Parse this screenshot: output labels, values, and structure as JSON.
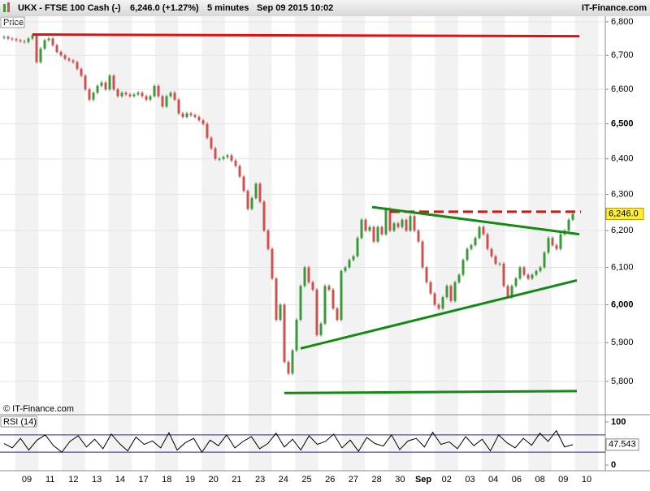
{
  "header": {
    "symbol": "UKX - FTSE 100 Cash (-)",
    "quote": "6,246.0 (+1.27%)",
    "interval": "5 minutes",
    "datetime": "Sep 09 2015 10:02",
    "brand": "IT-Finance.com"
  },
  "chart_data": [
    {
      "type": "candlestick",
      "panel_label": "Price",
      "copyright": "© IT-Finance.com",
      "log_scale": true,
      "grid": true,
      "up_color": "#3a9a3a",
      "down_color": "#d05050",
      "values": [
        6755,
        6750,
        6748,
        6745,
        6742,
        6740,
        6750,
        6760,
        6680,
        6720,
        6745,
        6750,
        6730,
        6710,
        6700,
        6690,
        6685,
        6680,
        6660,
        6640,
        6600,
        6570,
        6590,
        6610,
        6620,
        6600,
        6640,
        6600,
        6580,
        6590,
        6585,
        6580,
        6585,
        6590,
        6580,
        6570,
        6580,
        6610,
        6580,
        6550,
        6580,
        6590,
        6570,
        6530,
        6520,
        6530,
        6525,
        6520,
        6510,
        6500,
        6460,
        6430,
        6400,
        6400,
        6405,
        6410,
        6395,
        6380,
        6350,
        6310,
        6260,
        6290,
        6330,
        6280,
        6200,
        6150,
        6070,
        5960,
        6000,
        5850,
        5820,
        5880,
        5960,
        6050,
        6100,
        6060,
        6040,
        5920,
        5950,
        6050,
        6040,
        5990,
        5960,
        6090,
        6100,
        6120,
        6130,
        6180,
        6230,
        6200,
        6210,
        6170,
        6210,
        6190,
        6260,
        6200,
        6220,
        6210,
        6230,
        6200,
        6240,
        6200,
        6170,
        6100,
        6060,
        6030,
        6000,
        5990,
        6020,
        6050,
        6010,
        6060,
        6080,
        6120,
        6150,
        6160,
        6180,
        6210,
        6190,
        6150,
        6130,
        6110,
        6110,
        6050,
        6020,
        6050,
        6070,
        6100,
        6080,
        6070,
        6080,
        6090,
        6100,
        6140,
        6180,
        6160,
        6150,
        6190,
        6200,
        6230,
        6246
      ],
      "last_price": {
        "value": 6246,
        "label": "6,246.0"
      },
      "ylim": [
        5717,
        6817
      ],
      "yticks": [
        {
          "value": 5800,
          "label": "5,800"
        },
        {
          "value": 5900,
          "label": "5,900"
        },
        {
          "value": 6000,
          "label": "6,000"
        },
        {
          "value": 6100,
          "label": "6,100"
        },
        {
          "value": 6200,
          "label": "6,200"
        },
        {
          "value": 6300,
          "label": "6,300"
        },
        {
          "value": 6400,
          "label": "6,400"
        },
        {
          "value": 6500,
          "label": "6,500"
        },
        {
          "value": 6600,
          "label": "6,600"
        },
        {
          "value": 6700,
          "label": "6,700"
        },
        {
          "value": 6800,
          "label": "6,800"
        }
      ],
      "trendlines": [
        {
          "color": "#e01010",
          "dashed": false,
          "from": [
            7,
            6762
          ],
          "to": [
            141.6,
            6757
          ]
        },
        {
          "color": "#e01010",
          "dashed": true,
          "from": [
            95,
            6252
          ],
          "to": [
            142,
            6252
          ]
        },
        {
          "color": "#138a13",
          "dashed": false,
          "from": [
            90.6,
            6265
          ],
          "to": [
            141.6,
            6190
          ]
        },
        {
          "color": "#138a13",
          "dashed": false,
          "from": [
            73,
            5885
          ],
          "to": [
            141,
            6065
          ]
        },
        {
          "color": "#138a13",
          "dashed": false,
          "from": [
            69,
            5770
          ],
          "to": [
            141,
            5775
          ]
        }
      ]
    },
    {
      "type": "line",
      "panel_label": "RSI (14)",
      "color": "#000000",
      "level_color": "#2020a0",
      "values": [
        50,
        40,
        62,
        35,
        58,
        70,
        45,
        30,
        55,
        68,
        42,
        60,
        38,
        72,
        50,
        33,
        65,
        48,
        56,
        40,
        75,
        35,
        52,
        62,
        30,
        58,
        45,
        70,
        40,
        55,
        66,
        38,
        50,
        74,
        42,
        60,
        35,
        68,
        48,
        55,
        72,
        40,
        58,
        32,
        64,
        50,
        44,
        70,
        36,
        56,
        62,
        42,
        76,
        48,
        54,
        38,
        66,
        45,
        60,
        33,
        70,
        52,
        40,
        62,
        46,
        74,
        55,
        80,
        42,
        47.543
      ],
      "last_value": 47.543,
      "ylim": [
        -13,
        115
      ],
      "yticks": [
        0,
        100
      ],
      "levels": [
        30,
        70
      ]
    }
  ],
  "x_axis": {
    "categories": [
      "09",
      "11",
      "12",
      "13",
      "14",
      "17",
      "18",
      "19",
      "20",
      "21",
      "23",
      "24",
      "25",
      "26",
      "27",
      "28",
      "30",
      "Sep",
      "02",
      "03",
      "04",
      "06",
      "08",
      "09",
      "10"
    ]
  }
}
